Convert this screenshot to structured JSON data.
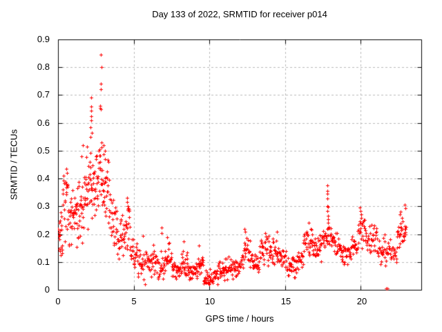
{
  "chart_data": {
    "type": "scatter",
    "title": "Day 133 of 2022, SRMTID for receiver p014",
    "xlabel": "GPS time / hours",
    "ylabel": "SRMTID / TECUs",
    "xlim": [
      0,
      24
    ],
    "ylim": [
      0,
      0.9
    ],
    "xticks": [
      0,
      5,
      10,
      15,
      20
    ],
    "yticks": [
      0,
      0.1,
      0.2,
      0.3,
      0.4,
      0.5,
      0.6,
      0.7,
      0.8,
      0.9
    ],
    "xtick_labels": [
      "0",
      "5",
      "10",
      "15",
      "20"
    ],
    "ytick_labels": [
      "0",
      "0.1",
      "0.2",
      "0.3",
      "0.4",
      "0.5",
      "0.6",
      "0.7",
      "0.8",
      "0.9"
    ],
    "grid": true,
    "grid_style": "dashed",
    "grid_color": "#b9b9b9",
    "border_color": "#000000",
    "marker": "plus",
    "marker_color": "#ff0000",
    "seed": 7,
    "bands_note": "dense scatter approximated as bands: [t_start_h, t_end_h, value_lo_TECU, value_hi_TECU, n_points]",
    "bands": [
      [
        0.0,
        0.3,
        0.1,
        0.33,
        20
      ],
      [
        0.3,
        0.8,
        0.14,
        0.42,
        30
      ],
      [
        0.8,
        1.3,
        0.12,
        0.38,
        32
      ],
      [
        1.3,
        1.8,
        0.16,
        0.46,
        32
      ],
      [
        1.8,
        2.3,
        0.18,
        0.54,
        32
      ],
      [
        2.3,
        2.7,
        0.24,
        0.52,
        26
      ],
      [
        2.7,
        3.0,
        0.27,
        0.52,
        20
      ],
      [
        3.0,
        3.4,
        0.22,
        0.5,
        24
      ],
      [
        3.4,
        3.9,
        0.14,
        0.35,
        26
      ],
      [
        3.9,
        4.4,
        0.1,
        0.28,
        26
      ],
      [
        4.4,
        4.75,
        0.1,
        0.34,
        18
      ],
      [
        4.75,
        5.2,
        0.06,
        0.2,
        22
      ],
      [
        5.2,
        5.8,
        0.03,
        0.16,
        26
      ],
      [
        5.8,
        6.3,
        0.04,
        0.18,
        26
      ],
      [
        6.3,
        7.0,
        0.03,
        0.15,
        32
      ],
      [
        7.0,
        7.5,
        0.05,
        0.18,
        24
      ],
      [
        7.5,
        8.1,
        0.03,
        0.12,
        28
      ],
      [
        8.1,
        8.6,
        0.04,
        0.16,
        26
      ],
      [
        8.6,
        9.2,
        0.02,
        0.11,
        30
      ],
      [
        9.2,
        9.6,
        0.03,
        0.14,
        20
      ],
      [
        9.6,
        10.6,
        0.01,
        0.09,
        46
      ],
      [
        10.6,
        11.6,
        0.03,
        0.12,
        46
      ],
      [
        11.6,
        12.1,
        0.04,
        0.13,
        24
      ],
      [
        12.1,
        12.7,
        0.06,
        0.21,
        28
      ],
      [
        12.7,
        13.3,
        0.05,
        0.14,
        28
      ],
      [
        13.3,
        14.0,
        0.08,
        0.2,
        32
      ],
      [
        14.0,
        14.6,
        0.09,
        0.2,
        28
      ],
      [
        14.6,
        15.1,
        0.07,
        0.17,
        22
      ],
      [
        15.1,
        15.8,
        0.04,
        0.13,
        32
      ],
      [
        15.8,
        16.2,
        0.06,
        0.16,
        18
      ],
      [
        16.2,
        16.8,
        0.11,
        0.23,
        30
      ],
      [
        16.8,
        17.4,
        0.1,
        0.22,
        30
      ],
      [
        17.4,
        17.8,
        0.13,
        0.23,
        18
      ],
      [
        17.8,
        18.1,
        0.14,
        0.26,
        14
      ],
      [
        18.1,
        18.6,
        0.11,
        0.22,
        22
      ],
      [
        18.6,
        19.3,
        0.09,
        0.18,
        32
      ],
      [
        19.3,
        19.8,
        0.11,
        0.2,
        22
      ],
      [
        19.8,
        20.4,
        0.14,
        0.27,
        28
      ],
      [
        20.4,
        21.1,
        0.12,
        0.24,
        32
      ],
      [
        21.1,
        22.4,
        0.08,
        0.2,
        52
      ],
      [
        22.4,
        23.0,
        0.13,
        0.27,
        30
      ]
    ],
    "outlier_points": [
      [
        0.55,
        0.435
      ],
      [
        0.6,
        0.42
      ],
      [
        1.55,
        0.48
      ],
      [
        1.62,
        0.52
      ],
      [
        2.14,
        0.55
      ],
      [
        2.16,
        0.585
      ],
      [
        2.17,
        0.69
      ],
      [
        2.18,
        0.625
      ],
      [
        2.19,
        0.66
      ],
      [
        2.2,
        0.61
      ],
      [
        2.21,
        0.645
      ],
      [
        2.22,
        0.565
      ],
      [
        2.78,
        0.655
      ],
      [
        2.8,
        0.662
      ],
      [
        2.82,
        0.648
      ],
      [
        2.84,
        0.74
      ],
      [
        2.85,
        0.845
      ],
      [
        2.85,
        0.72
      ],
      [
        2.86,
        0.8
      ],
      [
        2.87,
        0.53
      ],
      [
        3.0,
        0.487
      ],
      [
        3.02,
        0.52
      ],
      [
        3.08,
        0.5
      ],
      [
        3.12,
        0.47
      ],
      [
        4.55,
        0.33
      ],
      [
        4.58,
        0.315
      ],
      [
        4.6,
        0.3
      ],
      [
        4.62,
        0.29
      ],
      [
        5.62,
        0.195
      ],
      [
        5.73,
        0.02
      ],
      [
        6.83,
        0.225
      ],
      [
        6.85,
        0.205
      ],
      [
        7.2,
        0.19
      ],
      [
        8.32,
        0.175
      ],
      [
        9.3,
        0.16
      ],
      [
        12.3,
        0.22
      ],
      [
        12.35,
        0.21
      ],
      [
        13.7,
        0.205
      ],
      [
        14.45,
        0.21
      ],
      [
        16.55,
        0.24
      ],
      [
        17.78,
        0.375
      ],
      [
        17.79,
        0.355
      ],
      [
        17.8,
        0.345
      ],
      [
        17.81,
        0.327
      ],
      [
        17.8,
        0.3
      ],
      [
        17.82,
        0.298
      ],
      [
        17.79,
        0.283
      ],
      [
        17.83,
        0.266
      ],
      [
        17.84,
        0.253
      ],
      [
        17.85,
        0.24
      ],
      [
        19.95,
        0.295
      ],
      [
        19.98,
        0.283
      ],
      [
        20.02,
        0.27
      ],
      [
        21.6,
        0.198
      ],
      [
        21.68,
        0.004
      ],
      [
        21.76,
        0.004
      ],
      [
        22.6,
        0.27
      ],
      [
        22.65,
        0.28
      ],
      [
        22.92,
        0.307
      ],
      [
        22.97,
        0.293
      ]
    ]
  }
}
